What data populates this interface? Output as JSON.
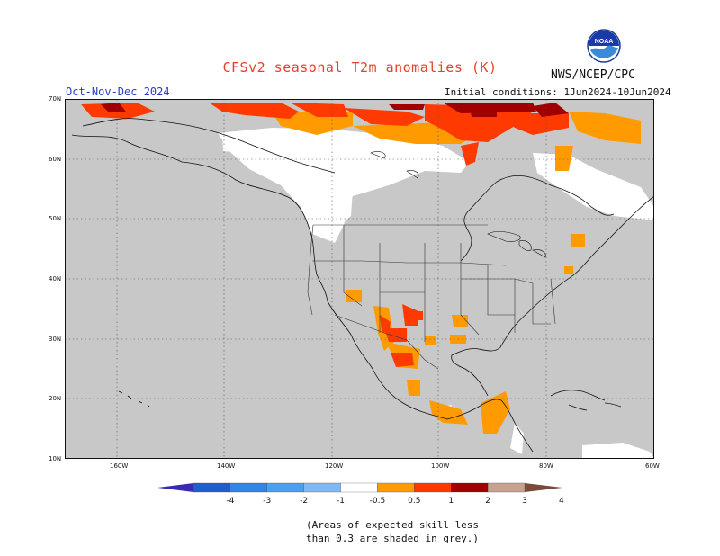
{
  "header": {
    "title": "CFSv2 seasonal T2m anomalies (K)",
    "agency": "NWS/NCEP/CPC",
    "logo_text": "NOAA",
    "season": "Oct-Nov-Dec 2024",
    "initial_conditions": "Initial conditions: 1Jun2024-10Jun2024"
  },
  "map": {
    "lat_labels": [
      "70N",
      "60N",
      "50N",
      "40N",
      "30N",
      "20N",
      "10N"
    ],
    "lon_labels": [
      "160W",
      "140W",
      "120W",
      "100W",
      "80W",
      "60W"
    ],
    "land_color": "#c8c8c8",
    "ocean_color": "#c8c8c8",
    "no_skill_color": "#c8c8c8"
  },
  "colorbar": {
    "labels": [
      "-4",
      "-3",
      "-2",
      "-1",
      "-0.5",
      "0.5",
      "1",
      "2",
      "3",
      "4"
    ],
    "colors": [
      "#3a2bb0",
      "#1e5fd0",
      "#2f86e8",
      "#4aa0f0",
      "#7dbaf5",
      "#ffffff",
      "#ff9a00",
      "#ff3a00",
      "#a00000",
      "#c8a090",
      "#7a4a3a"
    ]
  },
  "footer": {
    "note_line1": "(Areas of expected skill less",
    "note_line2": "than 0.3 are shaded in grey.)"
  }
}
